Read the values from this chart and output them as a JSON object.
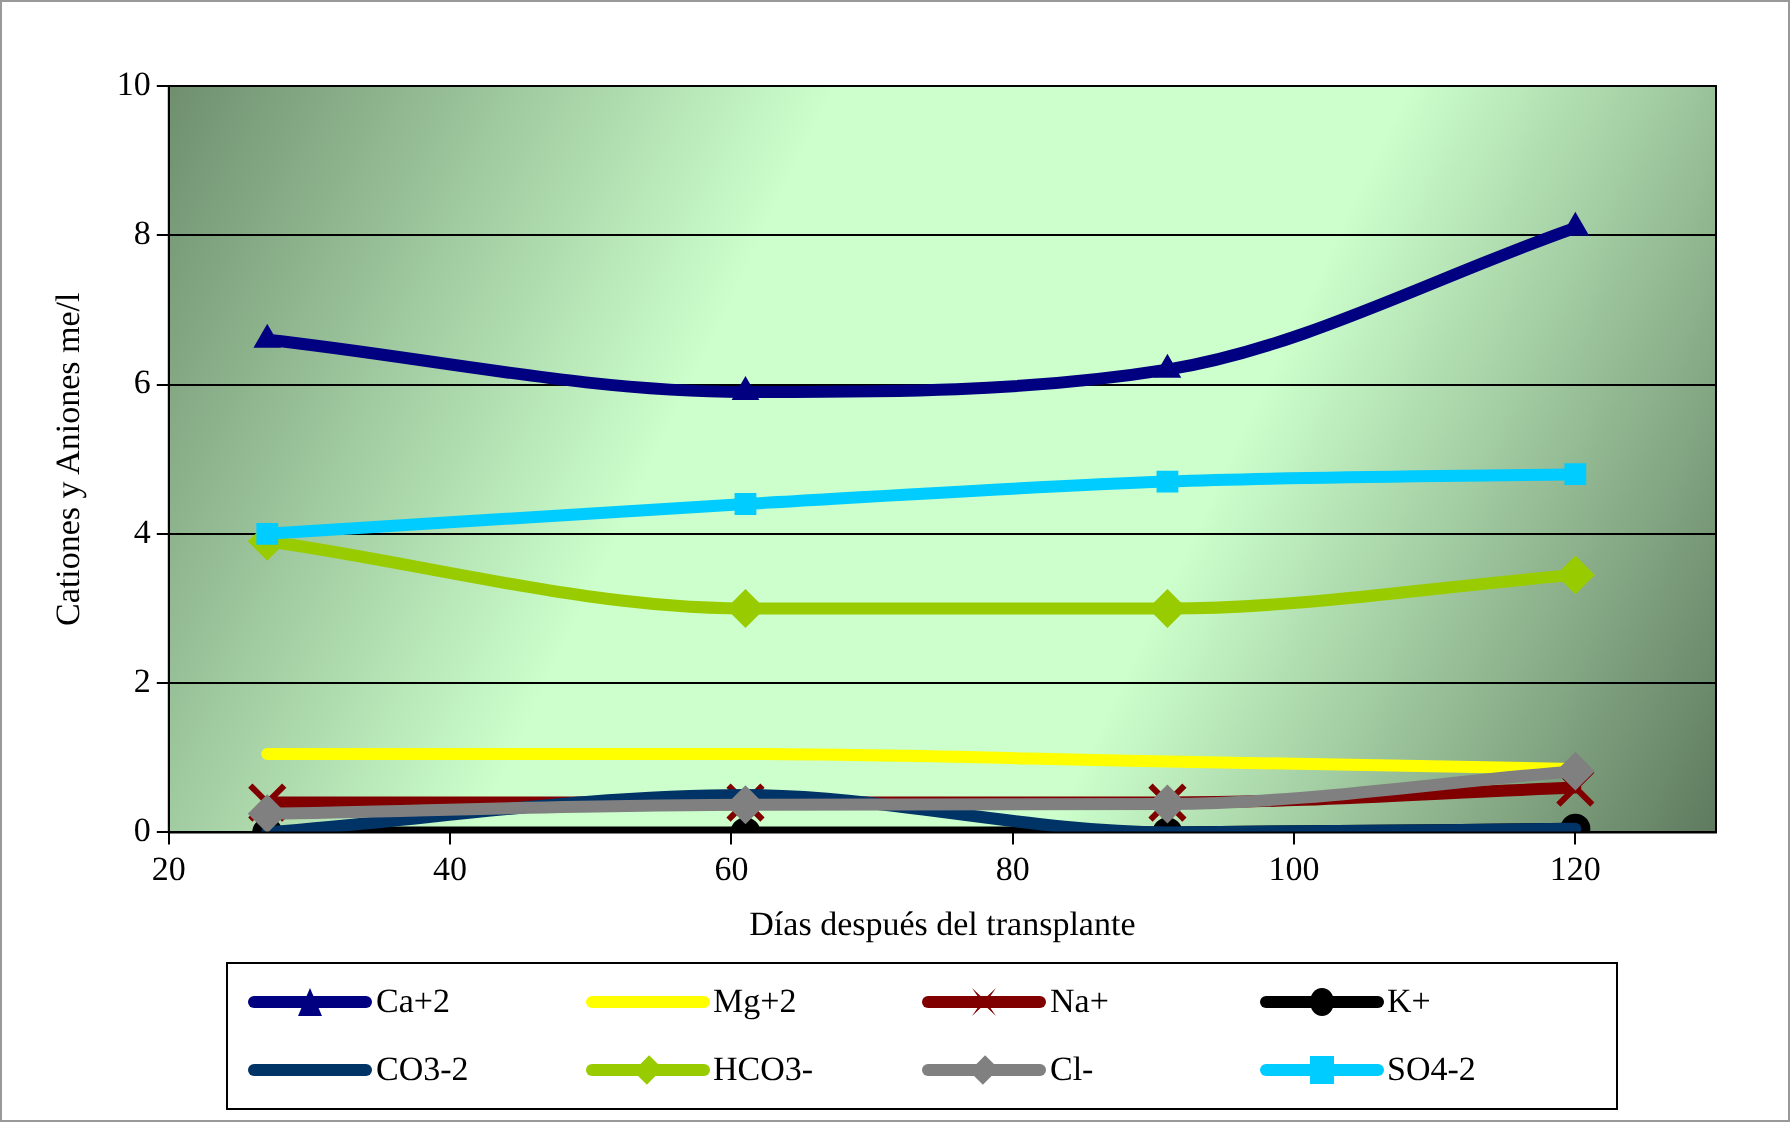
{
  "chart_data": {
    "type": "line",
    "xlabel": "Días después del transplante",
    "ylabel": "Cationes y Aniones me/l",
    "x": [
      27,
      61,
      91,
      120
    ],
    "xlim": [
      20,
      130
    ],
    "xticks": [
      20,
      40,
      60,
      80,
      100,
      120
    ],
    "ylim": [
      0,
      10
    ],
    "yticks": [
      0,
      2,
      4,
      6,
      8,
      10
    ],
    "grid": "y",
    "legend": "bottom",
    "line_style": "solid",
    "series": [
      {
        "name": "Ca+2",
        "color": "#000080",
        "marker": "triangle",
        "values": [
          6.6,
          5.9,
          6.2,
          8.1
        ]
      },
      {
        "name": "Mg+2",
        "color": "#ffff00",
        "marker": "none",
        "values": [
          1.05,
          1.05,
          0.95,
          0.85
        ]
      },
      {
        "name": "Na+",
        "color": "#800000",
        "marker": "cross",
        "values": [
          0.4,
          0.4,
          0.4,
          0.6
        ]
      },
      {
        "name": "K+",
        "color": "#000000",
        "marker": "circle",
        "values": [
          0,
          0,
          0,
          0.05
        ]
      },
      {
        "name": "CO3-2",
        "color": "#003366",
        "marker": "none",
        "values": [
          0,
          0.5,
          0,
          0.05
        ]
      },
      {
        "name": "HCO3-",
        "color": "#99cc00",
        "marker": "diamond",
        "values": [
          3.9,
          3.0,
          3.0,
          3.45
        ]
      },
      {
        "name": "Cl-",
        "color": "#808080",
        "marker": "diamond",
        "values": [
          0.25,
          0.37,
          0.38,
          0.82
        ]
      },
      {
        "name": "SO4-2",
        "color": "#00ccff",
        "marker": "square",
        "values": [
          4.0,
          4.4,
          4.7,
          4.8
        ]
      }
    ]
  }
}
